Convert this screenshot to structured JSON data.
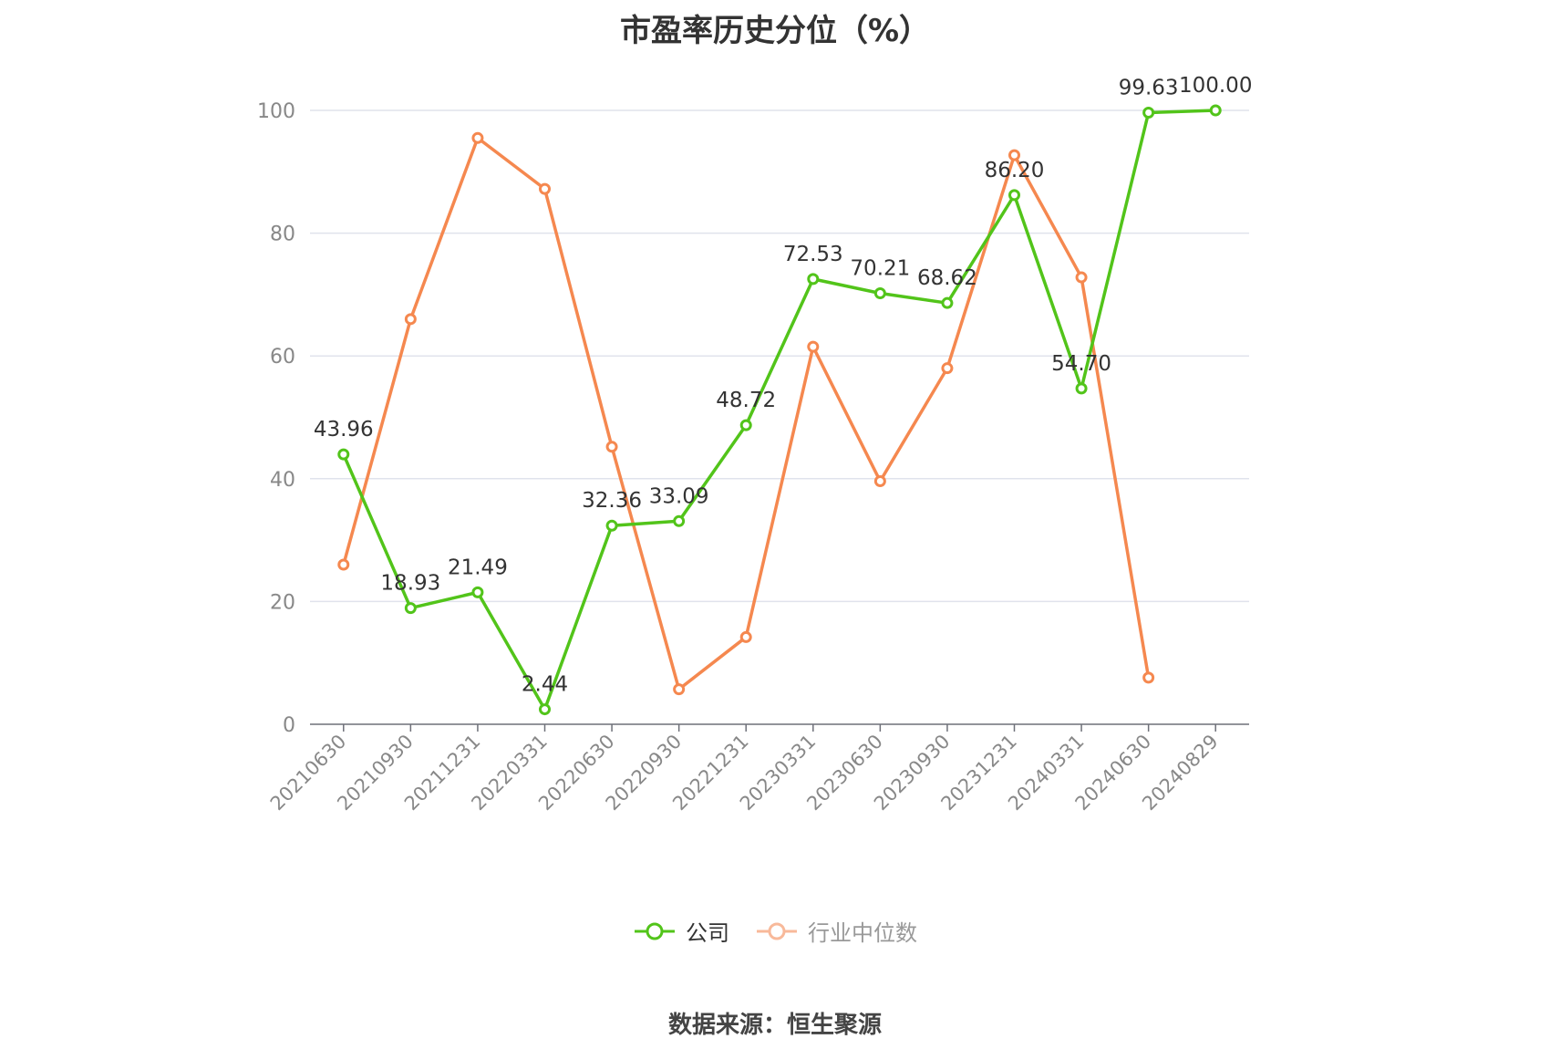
{
  "chart_data": {
    "type": "line",
    "title": "市盈率历史分位（%）",
    "x": [
      "20210630",
      "20210930",
      "20211231",
      "20220331",
      "20220630",
      "20220930",
      "20221231",
      "20230331",
      "20230630",
      "20230930",
      "20231231",
      "20240331",
      "20240630",
      "20240829"
    ],
    "ylim": [
      0,
      100
    ],
    "yticks": [
      0,
      20,
      40,
      60,
      80,
      100
    ],
    "grid": true,
    "legend_position": "bottom",
    "series": [
      {
        "name": "公司",
        "color": "#52c41a",
        "values": [
          43.96,
          18.93,
          21.49,
          2.44,
          32.36,
          33.09,
          48.72,
          72.53,
          70.21,
          68.62,
          86.2,
          54.7,
          99.63,
          100.0
        ],
        "labels": [
          "43.96",
          "18.93",
          "21.49",
          "2.44",
          "32.36",
          "33.09",
          "48.72",
          "72.53",
          "70.21",
          "68.62",
          "86.20",
          "54.70",
          "99.63",
          "100.00"
        ]
      },
      {
        "name": "行业中位数",
        "color": "#f5884f",
        "values": [
          26.0,
          66.0,
          95.5,
          87.2,
          45.2,
          5.7,
          14.2,
          61.5,
          39.6,
          58.0,
          92.7,
          72.8,
          7.6,
          null
        ]
      }
    ]
  },
  "legend": {
    "company": "公司",
    "industry": "行业中位数"
  },
  "source": "数据来源：恒生聚源"
}
